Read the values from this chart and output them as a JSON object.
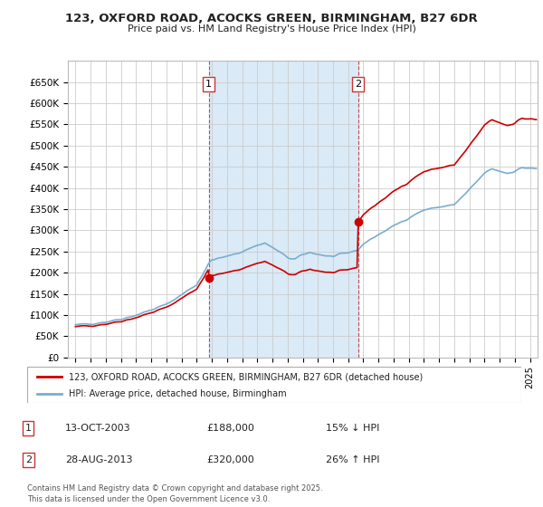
{
  "title": "123, OXFORD ROAD, ACOCKS GREEN, BIRMINGHAM, B27 6DR",
  "subtitle": "Price paid vs. HM Land Registry's House Price Index (HPI)",
  "background_color": "#ffffff",
  "plot_bg_color": "#ffffff",
  "grid_color": "#cccccc",
  "shaded_region_color": "#daeaf7",
  "ylim": [
    0,
    700000
  ],
  "yticks": [
    0,
    50000,
    100000,
    150000,
    200000,
    250000,
    300000,
    350000,
    400000,
    450000,
    500000,
    550000,
    600000,
    650000
  ],
  "ytick_labels": [
    "£0",
    "£50K",
    "£100K",
    "£150K",
    "£200K",
    "£250K",
    "£300K",
    "£350K",
    "£400K",
    "£450K",
    "£500K",
    "£550K",
    "£600K",
    "£650K"
  ],
  "sale1_date": 2003.79,
  "sale1_price": 188000,
  "sale2_date": 2013.65,
  "sale2_price": 320000,
  "legend_line1": "123, OXFORD ROAD, ACOCKS GREEN, BIRMINGHAM, B27 6DR (detached house)",
  "legend_line2": "HPI: Average price, detached house, Birmingham",
  "table_row1": [
    "1",
    "13-OCT-2003",
    "£188,000",
    "15% ↓ HPI"
  ],
  "table_row2": [
    "2",
    "28-AUG-2013",
    "£320,000",
    "26% ↑ HPI"
  ],
  "footer": "Contains HM Land Registry data © Crown copyright and database right 2025.\nThis data is licensed under the Open Government Licence v3.0.",
  "line_red": "#cc0000",
  "line_blue": "#7aadcf",
  "xlim_start": 1995.0,
  "xlim_end": 2025.5
}
